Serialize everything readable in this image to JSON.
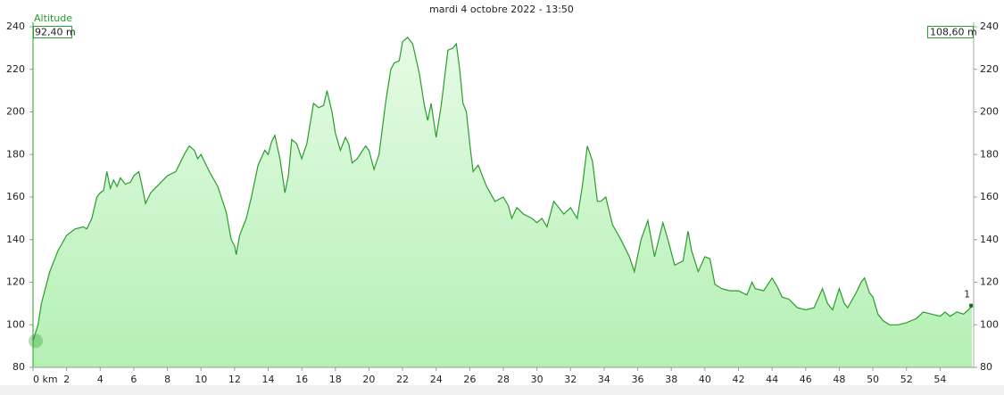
{
  "chart_data": {
    "type": "area",
    "title": "mardi 4 octobre 2022 - 13:50",
    "y_label": "Altitude",
    "start_label": "92,40 m",
    "end_label": "108,60 m",
    "marker_label": "1",
    "color": "#2a9d2a",
    "xlim": [
      0,
      56
    ],
    "ylim": [
      80,
      240
    ],
    "xticks": [
      {
        "value": 0,
        "label": "0 km"
      },
      2,
      4,
      6,
      8,
      10,
      12,
      14,
      16,
      18,
      20,
      22,
      24,
      26,
      28,
      30,
      32,
      34,
      36,
      38,
      40,
      42,
      44,
      46,
      48,
      50,
      52,
      54
    ],
    "yticks": [
      80,
      100,
      120,
      140,
      160,
      180,
      200,
      220,
      240
    ],
    "x": [
      0,
      0.3,
      0.5,
      1,
      1.5,
      2,
      2.5,
      3,
      3.2,
      3.5,
      3.8,
      4,
      4.2,
      4.4,
      4.6,
      4.8,
      5,
      5.2,
      5.5,
      5.8,
      6,
      6.3,
      6.5,
      6.7,
      7,
      7.5,
      8,
      8.5,
      9,
      9.3,
      9.6,
      9.8,
      10,
      10.5,
      11,
      11.5,
      11.8,
      12,
      12.1,
      12.3,
      12.7,
      13,
      13.4,
      13.8,
      14,
      14.2,
      14.4,
      14.7,
      15,
      15.2,
      15.4,
      15.7,
      16,
      16.3,
      16.7,
      17,
      17.3,
      17.5,
      17.8,
      18,
      18.3,
      18.6,
      18.8,
      19,
      19.3,
      19.8,
      20,
      20.3,
      20.6,
      21,
      21.3,
      21.5,
      21.8,
      22,
      22.3,
      22.6,
      23,
      23.3,
      23.5,
      23.7,
      24,
      24.3,
      24.7,
      25,
      25.2,
      25.4,
      25.6,
      25.8,
      26,
      26.2,
      26.5,
      27,
      27.5,
      28,
      28.3,
      28.5,
      28.8,
      29.2,
      29.7,
      30,
      30.3,
      30.6,
      31,
      31.3,
      31.6,
      32,
      32.4,
      32.7,
      33,
      33.3,
      33.6,
      33.8,
      34.1,
      34.5,
      35,
      35.5,
      35.8,
      36.2,
      36.6,
      37,
      37.5,
      37.8,
      38.2,
      38.7,
      39,
      39.2,
      39.6,
      40,
      40.3,
      40.6,
      41,
      41.5,
      42,
      42.5,
      42.8,
      43,
      43.5,
      44,
      44.3,
      44.6,
      45,
      45.5,
      46,
      46.5,
      47,
      47.3,
      47.6,
      48,
      48.3,
      48.5,
      49,
      49.3,
      49.5,
      49.8,
      50,
      50.3,
      50.6,
      51,
      51.5,
      52,
      52.3,
      52.6,
      53,
      53.5,
      54,
      54.3,
      54.6,
      55,
      55.4,
      55.9
    ],
    "values": [
      92.4,
      100,
      110,
      125,
      135,
      142,
      145,
      146,
      145,
      150,
      160,
      162,
      163,
      172,
      164,
      168,
      165,
      169,
      166,
      167,
      170,
      172,
      165,
      157,
      162,
      166,
      170,
      172,
      180,
      184,
      182,
      178,
      180,
      172,
      165,
      153,
      140,
      137,
      133,
      142,
      150,
      160,
      175,
      182,
      180,
      186,
      189,
      178,
      162,
      170,
      187,
      185,
      178,
      185,
      204,
      202,
      203,
      210,
      200,
      190,
      182,
      188,
      185,
      176,
      178,
      184,
      182,
      173,
      180,
      205,
      220,
      223,
      224,
      233,
      235,
      232,
      218,
      203,
      196,
      204,
      188,
      203,
      229,
      230,
      232,
      220,
      204,
      200,
      185,
      172,
      175,
      165,
      158,
      160,
      156,
      150,
      155,
      152,
      150,
      148,
      150,
      146,
      158,
      155,
      152,
      155,
      150,
      165,
      184,
      177,
      158,
      158,
      160,
      147,
      140,
      132,
      125,
      140,
      149,
      132,
      148,
      140,
      128,
      130,
      144,
      135,
      125,
      132,
      131,
      119,
      117,
      116,
      116,
      114,
      120,
      117,
      116,
      122,
      118,
      113,
      112,
      108,
      107,
      108,
      117,
      110,
      107,
      117,
      110,
      108,
      115,
      120,
      122,
      115,
      113,
      105,
      102,
      100,
      100,
      101,
      102,
      103,
      106,
      105,
      104,
      106,
      104,
      106,
      105,
      108.6
    ]
  }
}
